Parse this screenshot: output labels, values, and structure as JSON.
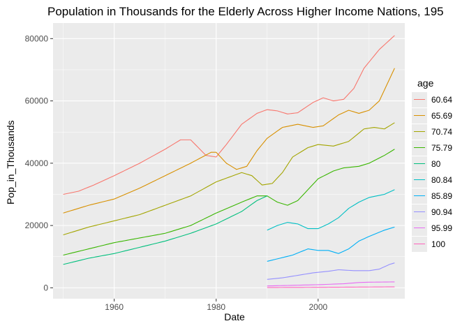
{
  "title": "Population in Thousands for the Elderly Across Higher Income Nations, 195",
  "chart_data": {
    "type": "line",
    "title": "Population in Thousands for the Elderly Across Higher Income Nations, 195",
    "xlabel": "Date",
    "ylabel": "Pop_in_Thousands",
    "xlim": [
      1948,
      2017
    ],
    "ylim": [
      -3500,
      85000
    ],
    "xticks": [
      1960,
      1980,
      2000
    ],
    "yticks": [
      0,
      20000,
      40000,
      60000,
      80000
    ],
    "ytick_labels": [
      "0",
      "20000",
      "40000",
      "60000",
      "80000"
    ],
    "grid": true,
    "legend_title": "age",
    "legend_position": "right",
    "series": [
      {
        "name": "60.64",
        "color": "#F8766D",
        "points": [
          [
            1950,
            30000
          ],
          [
            1953,
            31000
          ],
          [
            1956,
            33000
          ],
          [
            1960,
            36000
          ],
          [
            1965,
            40000
          ],
          [
            1970,
            44500
          ],
          [
            1973,
            47500
          ],
          [
            1975,
            47500
          ],
          [
            1978,
            42500
          ],
          [
            1980,
            42000
          ],
          [
            1982,
            46000
          ],
          [
            1985,
            52500
          ],
          [
            1988,
            56000
          ],
          [
            1990,
            57200
          ],
          [
            1992,
            56800
          ],
          [
            1994,
            55800
          ],
          [
            1996,
            56200
          ],
          [
            1999,
            59500
          ],
          [
            2001,
            61000
          ],
          [
            2003,
            60000
          ],
          [
            2005,
            60500
          ],
          [
            2007,
            64000
          ],
          [
            2009,
            70500
          ],
          [
            2012,
            76500
          ],
          [
            2015,
            81000
          ]
        ]
      },
      {
        "name": "65.69",
        "color": "#D89000",
        "points": [
          [
            1950,
            24000
          ],
          [
            1955,
            26500
          ],
          [
            1960,
            28500
          ],
          [
            1965,
            32000
          ],
          [
            1970,
            36000
          ],
          [
            1975,
            40000
          ],
          [
            1979,
            43500
          ],
          [
            1980,
            43500
          ],
          [
            1982,
            40000
          ],
          [
            1984,
            38000
          ],
          [
            1986,
            39000
          ],
          [
            1988,
            44000
          ],
          [
            1990,
            48000
          ],
          [
            1993,
            51500
          ],
          [
            1996,
            52500
          ],
          [
            1999,
            51500
          ],
          [
            2001,
            52000
          ],
          [
            2004,
            55500
          ],
          [
            2006,
            57000
          ],
          [
            2008,
            56000
          ],
          [
            2010,
            57000
          ],
          [
            2012,
            60000
          ],
          [
            2015,
            70500
          ]
        ]
      },
      {
        "name": "70.74",
        "color": "#A3A500",
        "points": [
          [
            1950,
            17000
          ],
          [
            1955,
            19500
          ],
          [
            1960,
            21500
          ],
          [
            1965,
            23500
          ],
          [
            1970,
            26500
          ],
          [
            1975,
            29500
          ],
          [
            1980,
            34000
          ],
          [
            1985,
            37000
          ],
          [
            1987,
            36000
          ],
          [
            1989,
            33000
          ],
          [
            1991,
            33500
          ],
          [
            1993,
            37000
          ],
          [
            1995,
            42000
          ],
          [
            1998,
            45000
          ],
          [
            2000,
            46000
          ],
          [
            2003,
            45500
          ],
          [
            2006,
            47000
          ],
          [
            2009,
            51000
          ],
          [
            2011,
            51500
          ],
          [
            2013,
            51000
          ],
          [
            2015,
            53000
          ]
        ]
      },
      {
        "name": "75.79",
        "color": "#39B600",
        "points": [
          [
            1950,
            10500
          ],
          [
            1955,
            12500
          ],
          [
            1960,
            14500
          ],
          [
            1965,
            16000
          ],
          [
            1970,
            17500
          ],
          [
            1975,
            20000
          ],
          [
            1980,
            24000
          ],
          [
            1985,
            27500
          ],
          [
            1988,
            29500
          ],
          [
            1990,
            29500
          ],
          [
            1992,
            27500
          ],
          [
            1994,
            26500
          ],
          [
            1996,
            28000
          ],
          [
            1998,
            31500
          ],
          [
            2000,
            35000
          ],
          [
            2003,
            37500
          ],
          [
            2005,
            38500
          ],
          [
            2008,
            39000
          ],
          [
            2010,
            40000
          ],
          [
            2013,
            42500
          ],
          [
            2015,
            44500
          ]
        ]
      },
      {
        "name": "80",
        "color": "#00BF7D",
        "points": [
          [
            1950,
            7500
          ],
          [
            1955,
            9500
          ],
          [
            1960,
            11000
          ],
          [
            1965,
            13000
          ],
          [
            1970,
            15000
          ],
          [
            1975,
            17500
          ],
          [
            1980,
            20500
          ],
          [
            1985,
            24500
          ],
          [
            1988,
            28000
          ],
          [
            1990,
            29500
          ]
        ]
      },
      {
        "name": "80.84",
        "color": "#00BFC4",
        "points": [
          [
            1990,
            18500
          ],
          [
            1992,
            20000
          ],
          [
            1994,
            21000
          ],
          [
            1996,
            20500
          ],
          [
            1998,
            19000
          ],
          [
            2000,
            19000
          ],
          [
            2002,
            20500
          ],
          [
            2004,
            22500
          ],
          [
            2006,
            25500
          ],
          [
            2008,
            27500
          ],
          [
            2010,
            29000
          ],
          [
            2013,
            30000
          ],
          [
            2015,
            31500
          ]
        ]
      },
      {
        "name": "85.89",
        "color": "#00B0F6",
        "points": [
          [
            1990,
            8500
          ],
          [
            1995,
            10500
          ],
          [
            1998,
            12500
          ],
          [
            2000,
            12000
          ],
          [
            2002,
            12000
          ],
          [
            2004,
            11000
          ],
          [
            2006,
            12500
          ],
          [
            2008,
            15000
          ],
          [
            2010,
            16500
          ],
          [
            2013,
            18500
          ],
          [
            2015,
            19500
          ]
        ]
      },
      {
        "name": "90.94",
        "color": "#9590FF",
        "points": [
          [
            1990,
            2700
          ],
          [
            1993,
            3200
          ],
          [
            1996,
            4000
          ],
          [
            1999,
            4800
          ],
          [
            2002,
            5300
          ],
          [
            2004,
            5800
          ],
          [
            2007,
            5500
          ],
          [
            2010,
            5500
          ],
          [
            2012,
            6000
          ],
          [
            2014,
            7500
          ],
          [
            2015,
            8000
          ]
        ]
      },
      {
        "name": "95.99",
        "color": "#E76BF3",
        "points": [
          [
            1990,
            600
          ],
          [
            1995,
            800
          ],
          [
            2000,
            1000
          ],
          [
            2005,
            1300
          ],
          [
            2008,
            1700
          ],
          [
            2010,
            1800
          ],
          [
            2015,
            1900
          ]
        ]
      },
      {
        "name": "100",
        "color": "#FF62BC",
        "points": [
          [
            1990,
            100
          ],
          [
            2000,
            150
          ],
          [
            2010,
            250
          ],
          [
            2015,
            300
          ]
        ]
      }
    ]
  }
}
